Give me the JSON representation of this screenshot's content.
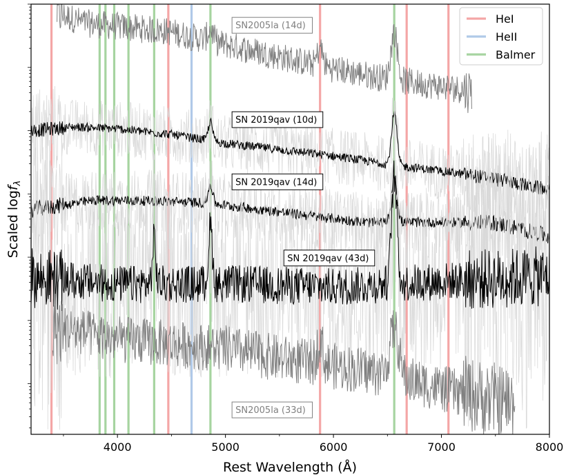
{
  "chart_data": {
    "type": "line",
    "xlabel": "Rest Wavelength (Å)",
    "ylabel": "Scaled log f_λ",
    "ylabel_prefix": "Scaled log",
    "ylabel_sub": "λ",
    "xlim": [
      3200,
      8000
    ],
    "x_ticks": [
      4000,
      5000,
      6000,
      7000,
      8000
    ],
    "y_scale": "log",
    "y_tick_labels_shown": false,
    "grid": false,
    "legend_position": "top-right",
    "line_groups": [
      {
        "name": "HeI",
        "color": "#f4a6a6",
        "wavelengths": [
          3389,
          4471,
          5876,
          6678,
          7065
        ]
      },
      {
        "name": "HeII",
        "color": "#b0c9e8",
        "wavelengths": [
          4686
        ]
      },
      {
        "name": "Balmer",
        "color": "#a6d4a0",
        "wavelengths": [
          3835,
          3889,
          3970,
          4102,
          4340,
          4861,
          6563
        ]
      }
    ],
    "annotations": [
      {
        "text": "SN2005la (14d)",
        "x": 5080,
        "color": "#808080"
      },
      {
        "text": "SN 2019qav (10d)",
        "x": 5080,
        "color": "#000000"
      },
      {
        "text": "SN 2019qav (14d)",
        "x": 5080,
        "color": "#000000"
      },
      {
        "text": "SN 2019qav (43d)",
        "x": 5560,
        "color": "#000000"
      },
      {
        "text": "SN2005la (33d)",
        "x": 5080,
        "color": "#808080"
      }
    ],
    "series": [
      {
        "x_range": [
          3440,
          7280
        ],
        "color": "#808080",
        "raw_color": null,
        "noise": 0.9,
        "raw_noise": 0,
        "continuum": [
          [
            3440,
            1.86
          ],
          [
            3700,
            1.7
          ],
          [
            4500,
            1.56
          ],
          [
            5000,
            1.36
          ],
          [
            5500,
            1.17
          ],
          [
            6000,
            0.98
          ],
          [
            6500,
            0.82
          ],
          [
            7280,
            0.63
          ]
        ],
        "lines": [
          [
            6563,
            0.75,
            30
          ],
          [
            5876,
            0.28,
            25
          ],
          [
            4861,
            0.18,
            25
          ]
        ]
      },
      {
        "x_range": [
          3200,
          8000
        ],
        "color": "#000000",
        "raw_color": "#d9d9d9",
        "noise": 0.28,
        "raw_noise": 0.9,
        "continuum": [
          [
            3200,
            0.0
          ],
          [
            3600,
            0.06
          ],
          [
            4000,
            0.03
          ],
          [
            4500,
            -0.06
          ],
          [
            5000,
            -0.2
          ],
          [
            5500,
            -0.3
          ],
          [
            6000,
            -0.4
          ],
          [
            6500,
            -0.53
          ],
          [
            7000,
            -0.64
          ],
          [
            7500,
            -0.76
          ],
          [
            8000,
            -0.94
          ]
        ],
        "lines": [
          [
            6563,
            0.82,
            25
          ],
          [
            4861,
            0.3,
            20
          ]
        ]
      },
      {
        "x_range": [
          3200,
          8000
        ],
        "color": "#000000",
        "raw_color": "#d9d9d9",
        "noise": 0.32,
        "raw_noise": 1.0,
        "continuum": [
          [
            3200,
            -1.25
          ],
          [
            3800,
            -1.1
          ],
          [
            4300,
            -1.11
          ],
          [
            4800,
            -1.14
          ],
          [
            5200,
            -1.22
          ],
          [
            5800,
            -1.35
          ],
          [
            6300,
            -1.45
          ],
          [
            7000,
            -1.45
          ],
          [
            7500,
            -1.46
          ],
          [
            8000,
            -1.67
          ]
        ],
        "lines": [
          [
            6563,
            0.75,
            25
          ],
          [
            4861,
            0.3,
            20
          ]
        ]
      },
      {
        "x_range": [
          3200,
          8000
        ],
        "color": "#000000",
        "raw_color": "#d9d9d9",
        "noise": 1.2,
        "raw_noise": 3.0,
        "continuum": [
          [
            3200,
            -2.32
          ],
          [
            4000,
            -2.43
          ],
          [
            5000,
            -2.42
          ],
          [
            6000,
            -2.47
          ],
          [
            7000,
            -2.38
          ],
          [
            8000,
            -2.3
          ]
        ],
        "lines": [
          [
            6563,
            1.7,
            25
          ],
          [
            4861,
            0.9,
            18
          ],
          [
            4340,
            0.7,
            15
          ]
        ]
      },
      {
        "x_range": [
          3400,
          7680
        ],
        "color": "#808080",
        "raw_color": null,
        "noise": 1.5,
        "raw_noise": 0,
        "continuum": [
          [
            3400,
            -3.1
          ],
          [
            4000,
            -3.3
          ],
          [
            4500,
            -3.37
          ],
          [
            5000,
            -3.45
          ],
          [
            5500,
            -3.6
          ],
          [
            6000,
            -3.72
          ],
          [
            6500,
            -3.85
          ],
          [
            7000,
            -4.08
          ],
          [
            7680,
            -4.32
          ]
        ],
        "lines": [
          [
            6563,
            0.75,
            40
          ],
          [
            5876,
            0.4,
            25
          ]
        ]
      }
    ],
    "ylim": [
      -4.8,
      2.0
    ]
  }
}
